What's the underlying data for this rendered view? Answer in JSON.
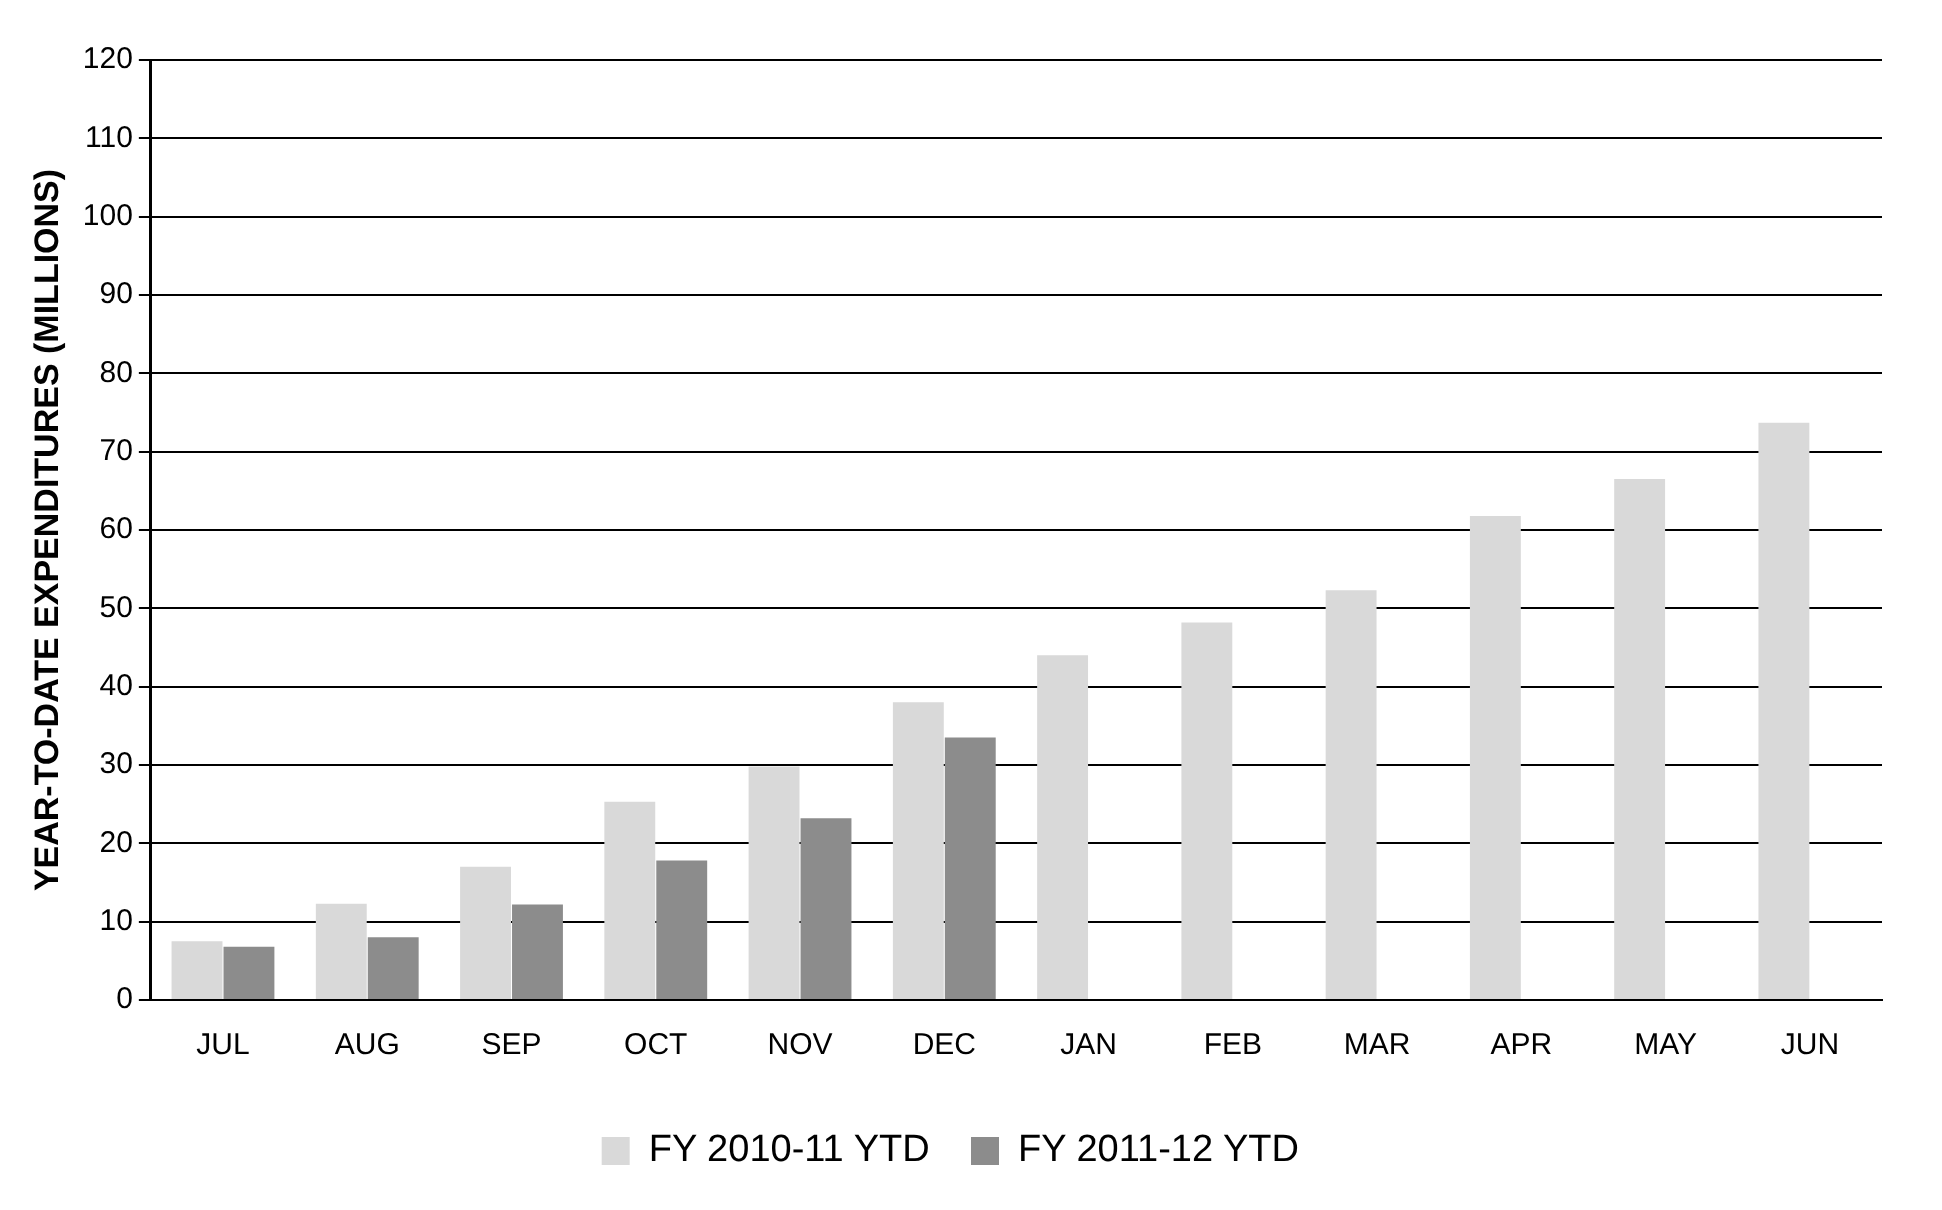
{
  "chart_data": {
    "type": "bar",
    "ylabel": "YEAR-TO-DATE EXPENDITURES (MILLIONS)",
    "categories": [
      "JUL",
      "AUG",
      "SEP",
      "OCT",
      "NOV",
      "DEC",
      "JAN",
      "FEB",
      "MAR",
      "APR",
      "MAY",
      "JUN"
    ],
    "series": [
      {
        "name": "FY 2010-11 YTD",
        "color": "#d9d9d9",
        "values": [
          7.5,
          12.3,
          17,
          25.3,
          29.8,
          38,
          44,
          48.2,
          52.3,
          61.8,
          66.5,
          73.7
        ]
      },
      {
        "name": "FY 2011-12 YTD",
        "color": "#8c8c8c",
        "values": [
          6.8,
          8,
          12.2,
          17.8,
          23.2,
          33.5,
          null,
          null,
          null,
          null,
          null,
          null
        ]
      }
    ],
    "ylim": [
      0,
      120
    ],
    "yticks": [
      0,
      10,
      20,
      30,
      40,
      50,
      60,
      70,
      80,
      90,
      100,
      110,
      120
    ],
    "grid": "y",
    "legend": "bottom"
  }
}
